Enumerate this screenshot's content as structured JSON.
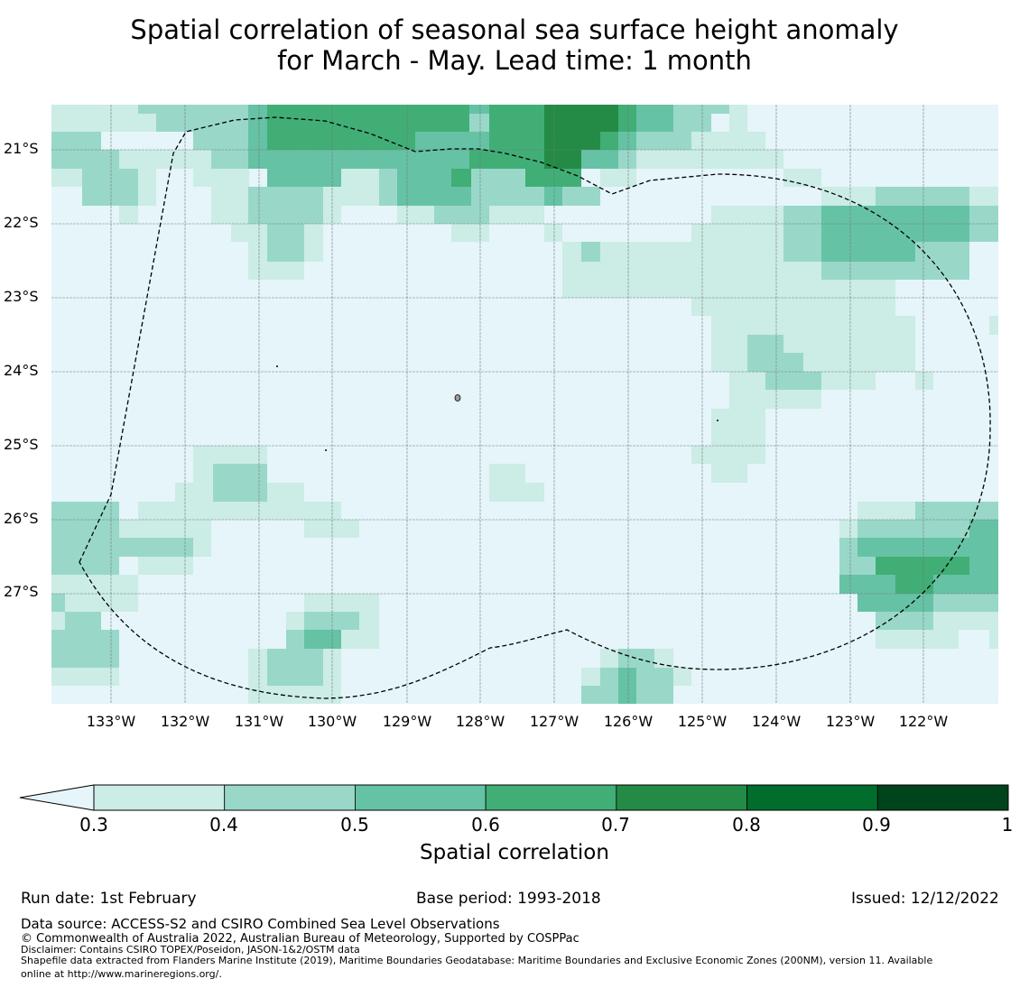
{
  "title": {
    "line1": "Spatial correlation of seasonal sea surface height anomaly",
    "line2": "for March - May. Lead time: 1 month"
  },
  "map": {
    "lat_labels": [
      "21°S",
      "22°S",
      "23°S",
      "24°S",
      "25°S",
      "26°S",
      "27°S"
    ],
    "lon_labels": [
      "133°W",
      "132°W",
      "131°W",
      "130°W",
      "129°W",
      "128°W",
      "127°W",
      "126°W",
      "125°W",
      "124°W",
      "123°W",
      "122°W"
    ],
    "colors": {
      "below": "#e5f5f9",
      "0.3-0.4": "#ccece6",
      "0.4-0.5": "#99d8c9",
      "0.5-0.6": "#66c2a4",
      "0.6-0.7": "#41ae76",
      "0.7-0.8": "#238b45",
      "0.8-0.9": "#006d2c",
      "0.9-1": "#00441b"
    }
  },
  "colorbar": {
    "ticks": [
      "0.3",
      "0.4",
      "0.5",
      "0.6",
      "0.7",
      "0.8",
      "0.9",
      "1"
    ],
    "label": "Spatial correlation"
  },
  "footer": {
    "run_date": "Run date: 1st February",
    "base_period": "Base period: 1993-2018",
    "issued": "Issued: 12/12/2022",
    "data_source": "Data source: ACCESS-S2 and CSIRO Combined Sea Level Observations",
    "copyright": "© Commonwealth of Australia 2022, Australian Bureau of Meteorology, Supported by COSPPac",
    "disclaimer": "Disclaimer: Contains CSIRO TOPEX/Poseidon, JASON-1&2/OSTM data",
    "shapefile_1": "Shapefile data extracted from Flanders Marine Institute (2019), Maritime Boundaries Geodatabase: Maritime Boundaries and Exclusive Economic Zones (200NM), version 11. Available",
    "shapefile_2": "online at http://www.marineregions.org/."
  }
}
